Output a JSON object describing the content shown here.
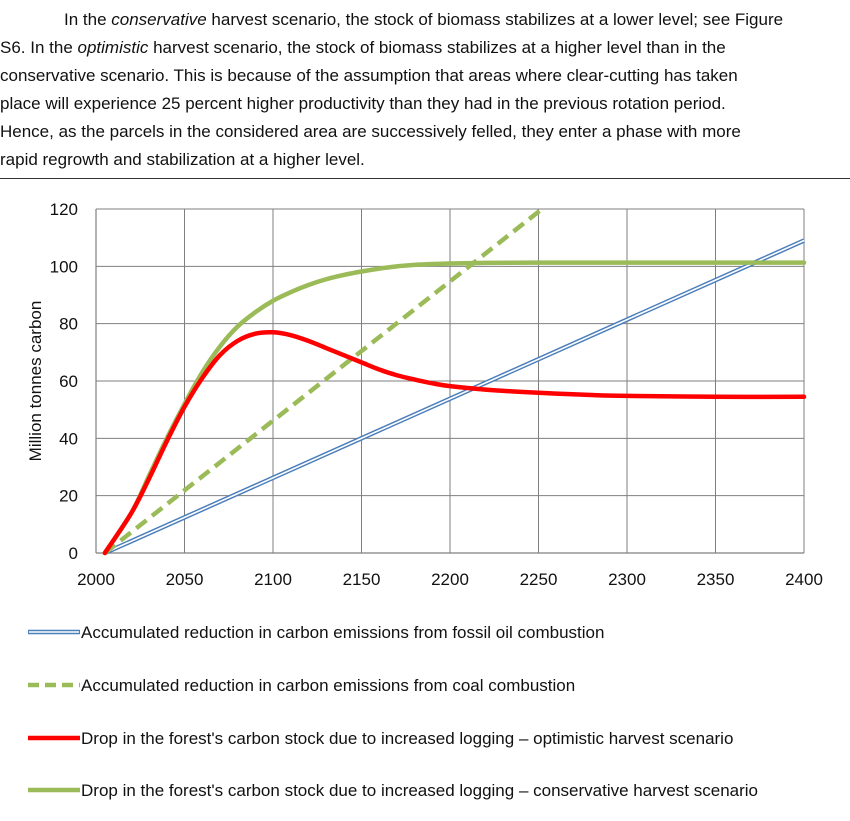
{
  "paragraph": {
    "line1_prefix": "In the ",
    "line1_em": "conservative",
    "line1_suffix": " harvest scenario, the stock of biomass stabilizes at a lower level; see Figure",
    "line2_prefix": "S6. In the ",
    "line2_em": "optimistic",
    "line2_suffix": " harvest scenario, the stock of biomass stabilizes at a higher level than in the",
    "line3": "conservative scenario. This is because of the assumption that areas where clear-cutting has taken",
    "line4": "place will experience 25 percent higher productivity than they had in the previous rotation period.",
    "line5": "Hence, as the parcels in the considered area are successively felled, they enter a phase with more",
    "line6": "rapid regrowth and stabilization at a higher level."
  },
  "chart_data": {
    "type": "line",
    "ylabel": "Million tonnes carbon",
    "xlabel": "",
    "xlim": [
      2000,
      2400
    ],
    "ylim": [
      0,
      120
    ],
    "x_ticks": [
      "2000",
      "2050",
      "2100",
      "2150",
      "2200",
      "2250",
      "2300",
      "2350",
      "2400"
    ],
    "y_ticks": [
      "0",
      "20",
      "40",
      "60",
      "80",
      "100",
      "120"
    ],
    "grid": true,
    "legend_position": "bottom",
    "series": [
      {
        "name": "Accumulated reduction in carbon emissions from fossil oil combustion",
        "style": "double",
        "color": "#4a7ebb",
        "x": [
          2005,
          2400
        ],
        "y": [
          0,
          109
        ]
      },
      {
        "name": "Accumulated reduction in carbon emissions from coal combustion",
        "style": "dashed",
        "color": "#9bbb59",
        "x": [
          2005,
          2252
        ],
        "y": [
          0,
          120
        ]
      },
      {
        "name": "Drop in the forest's carbon stock due to increased logging –  optimistic harvest scenario",
        "style": "solid",
        "color": "#ff0000",
        "x": [
          2005,
          2020,
          2030,
          2040,
          2050,
          2060,
          2070,
          2080,
          2090,
          2100,
          2110,
          2120,
          2130,
          2140,
          2150,
          2160,
          2170,
          2180,
          2190,
          2200,
          2220,
          2240,
          2260,
          2280,
          2300,
          2350,
          2400
        ],
        "y": [
          0,
          14,
          26,
          39,
          51,
          61,
          69,
          74,
          76.5,
          77,
          76,
          74,
          71.5,
          69,
          66.5,
          64,
          62,
          60.5,
          59.2,
          58.2,
          57,
          56.2,
          55.6,
          55.1,
          54.8,
          54.5,
          54.5
        ]
      },
      {
        "name": "Drop in the forest's carbon stock due to increased logging –  conservative harvest scenario",
        "style": "solid",
        "color": "#9bbb59",
        "x": [
          2005,
          2020,
          2030,
          2040,
          2050,
          2060,
          2070,
          2080,
          2090,
          2100,
          2110,
          2120,
          2130,
          2140,
          2150,
          2160,
          2170,
          2180,
          2190,
          2200,
          2220,
          2250,
          2300,
          2350,
          2400
        ],
        "y": [
          0,
          14,
          27,
          40,
          52,
          63,
          72,
          79,
          84,
          88,
          91,
          93.5,
          95.5,
          97,
          98.2,
          99.2,
          100,
          100.5,
          100.8,
          101,
          101.2,
          101.3,
          101.3,
          101.3,
          101.3
        ]
      }
    ]
  }
}
